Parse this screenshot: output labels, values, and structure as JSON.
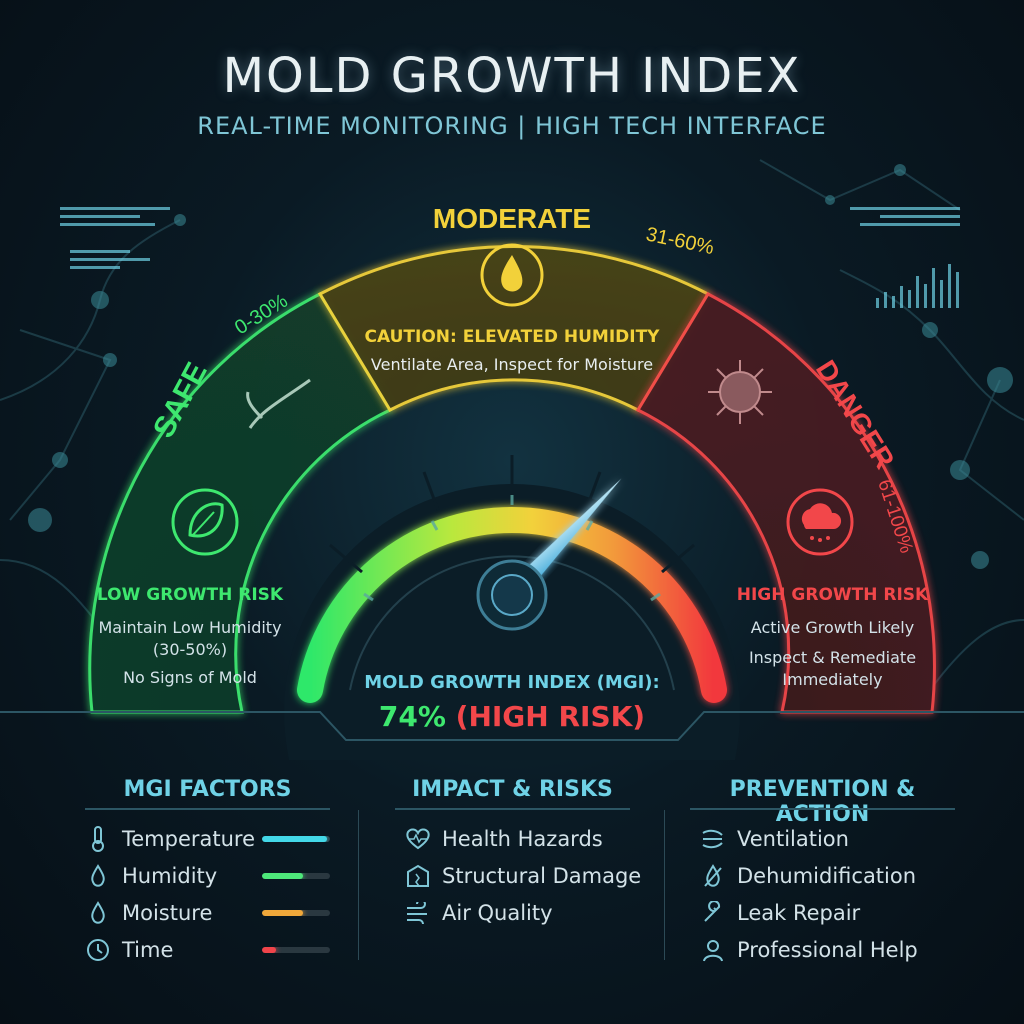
{
  "header": {
    "title": "MOLD GROWTH INDEX",
    "subtitle": "REAL-TIME MONITORING | HIGH TECH INTERFACE"
  },
  "gauge": {
    "value_percent": 74,
    "zones": {
      "safe": {
        "label": "SAFE",
        "range": "0-30%",
        "heading": "LOW GROWTH RISK",
        "line1": "Maintain Low Humidity",
        "line2": "(30-50%)",
        "line3": "No Signs of Mold",
        "color": "#3ee86f"
      },
      "moderate": {
        "label": "MODERATE",
        "range": "31-60%",
        "heading": "CAUTION: ELEVATED HUMIDITY",
        "line1": "Ventilate Area, Inspect for Moisture",
        "color": "#f2d13a"
      },
      "danger": {
        "label": "DANGER",
        "range": "61-100%",
        "heading": "HIGH GROWTH RISK",
        "line1": "Active Growth Likely",
        "line2": "Inspect & Remediate",
        "line3": "Immediately",
        "color": "#f2474a"
      }
    },
    "readout": {
      "label": "MOLD GROWTH INDEX (MGI):",
      "value": "74%",
      "status": "(HIGH RISK)"
    }
  },
  "panels": {
    "factors": {
      "title": "MGI FACTORS",
      "items": [
        {
          "label": "Temperature",
          "icon": "thermometer-icon",
          "level": 0.95,
          "color": "#43d8e8"
        },
        {
          "label": "Humidity",
          "icon": "droplet-icon",
          "level": 0.6,
          "color": "#4ee87a"
        },
        {
          "label": "Moisture",
          "icon": "droplet-icon",
          "level": 0.6,
          "color": "#f0a83a"
        },
        {
          "label": "Time",
          "icon": "clock-icon",
          "level": 0.2,
          "color": "#f0444a"
        }
      ]
    },
    "impact": {
      "title": "IMPACT & RISKS",
      "items": [
        {
          "label": "Health Hazards",
          "icon": "heartbeat-icon"
        },
        {
          "label": "Structural Damage",
          "icon": "building-damage-icon"
        },
        {
          "label": "Air Quality",
          "icon": "wind-icon"
        }
      ]
    },
    "prevention": {
      "title": "PREVENTION & ACTION",
      "items": [
        {
          "label": "Ventilation",
          "icon": "fan-icon"
        },
        {
          "label": "Dehumidification",
          "icon": "no-droplet-icon"
        },
        {
          "label": "Leak Repair",
          "icon": "wrench-icon"
        },
        {
          "label": "Professional Help",
          "icon": "person-icon"
        }
      ]
    }
  }
}
